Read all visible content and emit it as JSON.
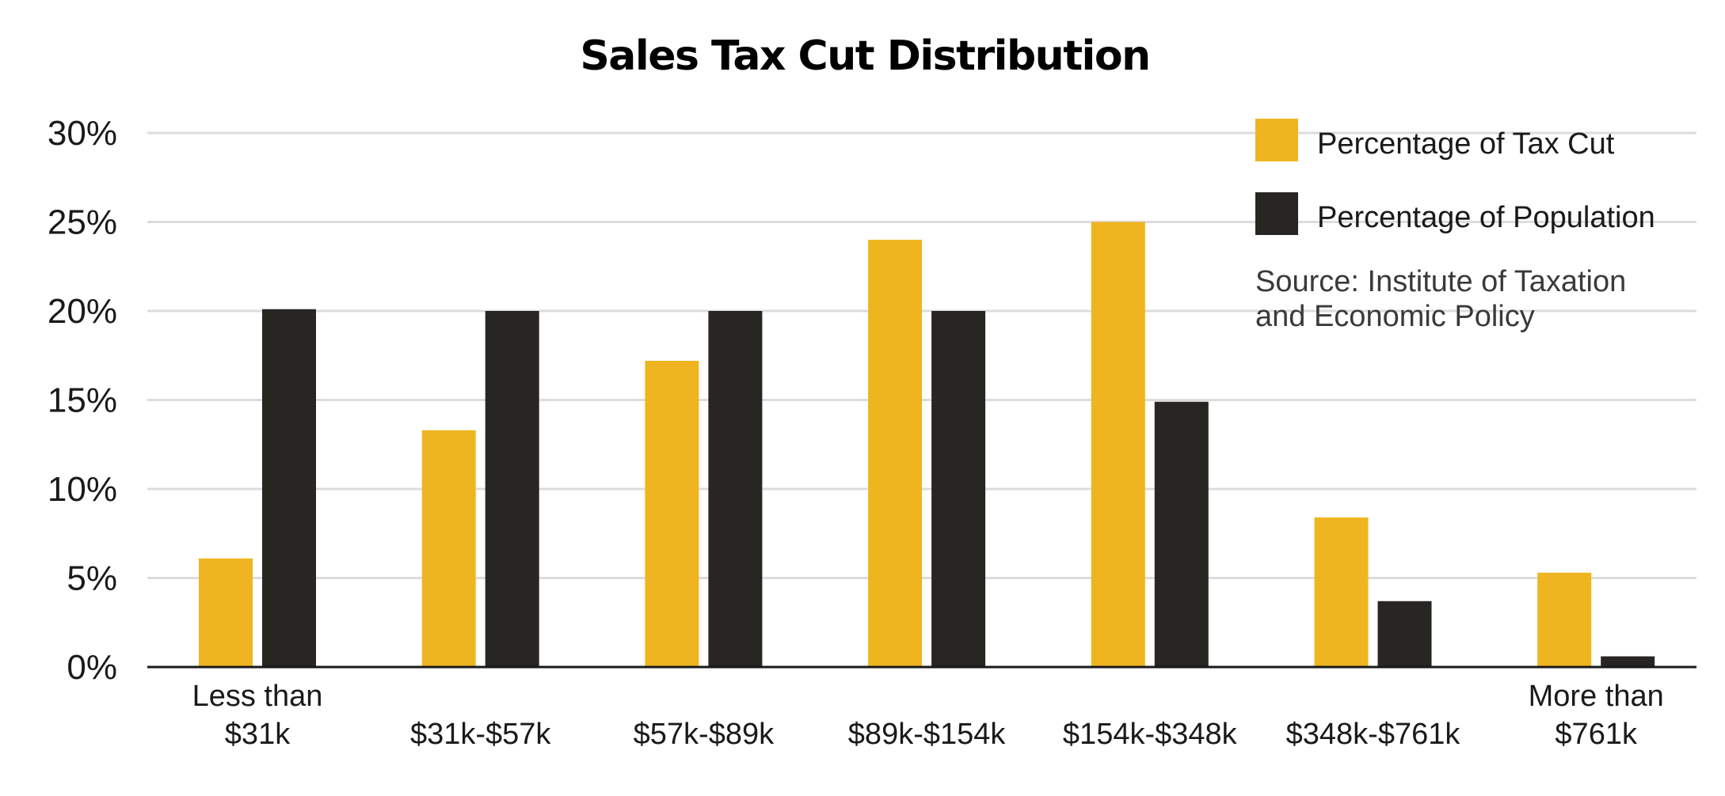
{
  "chart_data": {
    "type": "bar",
    "title": "Sales Tax Cut Distribution",
    "xlabel": "",
    "ylabel": "",
    "ylim": [
      0,
      30
    ],
    "yticks": [
      "0%",
      "5%",
      "10%",
      "15%",
      "20%",
      "25%",
      "30%"
    ],
    "ytick_values": [
      0,
      5,
      10,
      15,
      20,
      25,
      30
    ],
    "grid": true,
    "legend_position": "top-right",
    "categories": [
      [
        "Less than",
        "$31k"
      ],
      [
        "$31k-$57k"
      ],
      [
        "$57k-$89k"
      ],
      [
        "$89k-$154k"
      ],
      [
        "$154k-$348k"
      ],
      [
        "$348k-$761k"
      ],
      [
        "More than",
        "$761k"
      ]
    ],
    "series": [
      {
        "name": "Percentage of Tax Cut",
        "color": "#EFB521",
        "values": [
          6.1,
          13.3,
          17.2,
          24.0,
          25.0,
          8.4,
          5.3
        ]
      },
      {
        "name": "Percentage of Population",
        "color": "#282623",
        "values": [
          20.1,
          20.0,
          20.0,
          20.0,
          14.9,
          3.7,
          0.6
        ]
      }
    ],
    "source_lines": [
      "Source: Institute of Taxation",
      "and Economic Policy"
    ]
  }
}
